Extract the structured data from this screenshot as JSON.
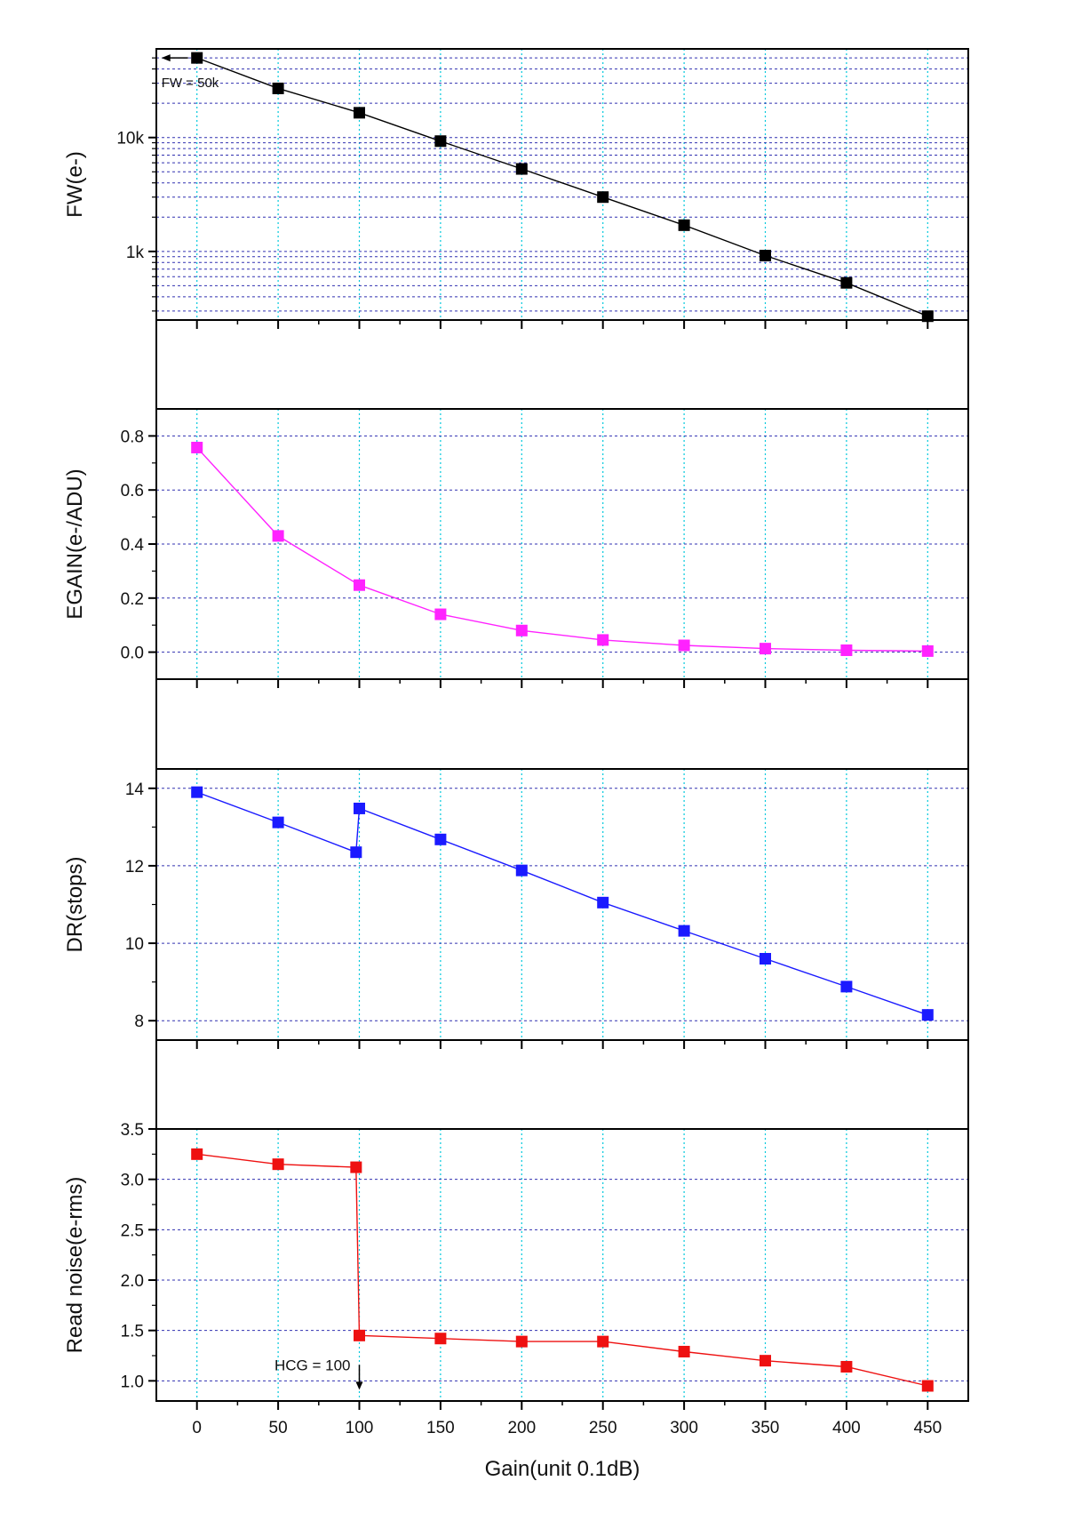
{
  "xlabel": "Gain(unit 0.1dB)",
  "x_ticks": [
    0,
    50,
    100,
    150,
    200,
    250,
    300,
    350,
    400,
    450
  ],
  "xlim": [
    -25,
    475
  ],
  "colors": {
    "grid_vertical": "#00c8dc",
    "grid_horizontal": "#3030b0",
    "axis": "#000000"
  },
  "chart_data": [
    {
      "type": "line",
      "ylabel": "FW(e-)",
      "yscale": "log",
      "ylim": [
        250,
        60000
      ],
      "y_ticks": [
        {
          "value": 1000,
          "label": "1k"
        },
        {
          "value": 10000,
          "label": "10k"
        }
      ],
      "grid": true,
      "color": "#000000",
      "marker": "square",
      "x": [
        0,
        50,
        100,
        150,
        200,
        250,
        300,
        350,
        400,
        450
      ],
      "y": [
        50000,
        27000,
        16500,
        9300,
        5300,
        3000,
        1700,
        920,
        530,
        270
      ],
      "annotations": [
        {
          "text": "FW = 50k",
          "arrow": "left",
          "x": 0,
          "y": 50000
        }
      ]
    },
    {
      "type": "line",
      "ylabel": "EGAIN(e-/ADU)",
      "yscale": "linear",
      "ylim": [
        -0.1,
        0.9
      ],
      "y_ticks": [
        {
          "value": 0.0,
          "label": "0.0"
        },
        {
          "value": 0.2,
          "label": "0.2"
        },
        {
          "value": 0.4,
          "label": "0.4"
        },
        {
          "value": 0.6,
          "label": "0.6"
        },
        {
          "value": 0.8,
          "label": "0.8"
        }
      ],
      "grid": true,
      "color": "#ff22ff",
      "marker": "square",
      "x": [
        0,
        50,
        100,
        150,
        200,
        250,
        300,
        350,
        400,
        450
      ],
      "y": [
        0.757,
        0.43,
        0.248,
        0.14,
        0.08,
        0.045,
        0.025,
        0.013,
        0.007,
        0.004
      ]
    },
    {
      "type": "line",
      "ylabel": "DR(stops)",
      "yscale": "linear",
      "ylim": [
        7.5,
        14.5
      ],
      "y_ticks": [
        {
          "value": 8,
          "label": "8"
        },
        {
          "value": 10,
          "label": "10"
        },
        {
          "value": 12,
          "label": "12"
        },
        {
          "value": 14,
          "label": "14"
        }
      ],
      "grid": true,
      "color": "#1a1aff",
      "marker": "square",
      "x": [
        0,
        50,
        98,
        100,
        150,
        200,
        250,
        300,
        350,
        400,
        450
      ],
      "y": [
        13.9,
        13.12,
        12.35,
        13.48,
        12.68,
        11.88,
        11.05,
        10.32,
        9.6,
        8.88,
        8.15
      ]
    },
    {
      "type": "line",
      "ylabel": "Read noise(e-rms)",
      "yscale": "linear",
      "ylim": [
        0.8,
        3.5
      ],
      "y_ticks": [
        {
          "value": 1.0,
          "label": "1.0"
        },
        {
          "value": 1.5,
          "label": "1.5"
        },
        {
          "value": 2.0,
          "label": "2.0"
        },
        {
          "value": 2.5,
          "label": "2.5"
        },
        {
          "value": 3.0,
          "label": "3.0"
        },
        {
          "value": 3.5,
          "label": "3.5"
        }
      ],
      "grid": true,
      "color": "#ee1111",
      "marker": "square",
      "x": [
        0,
        50,
        98,
        100,
        150,
        200,
        250,
        300,
        350,
        400,
        450
      ],
      "y": [
        3.25,
        3.15,
        3.12,
        1.45,
        1.42,
        1.39,
        1.39,
        1.29,
        1.2,
        1.14,
        0.95
      ],
      "annotations": [
        {
          "text": "HCG = 100",
          "arrow": "down",
          "x": 100,
          "y": 1.0
        }
      ]
    }
  ]
}
